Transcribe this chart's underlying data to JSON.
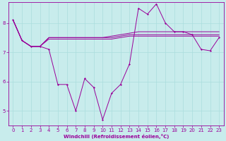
{
  "xlabel": "Windchill (Refroidissement éolien,°C)",
  "background_color": "#c8ecec",
  "grid_color": "#aadddd",
  "line_color": "#990099",
  "xlim": [
    -0.5,
    23.5
  ],
  "ylim": [
    4.5,
    8.7
  ],
  "xticks": [
    0,
    1,
    2,
    3,
    4,
    5,
    6,
    7,
    8,
    9,
    10,
    11,
    12,
    13,
    14,
    15,
    16,
    17,
    18,
    19,
    20,
    21,
    22,
    23
  ],
  "yticks": [
    5,
    6,
    7,
    8
  ],
  "series": [
    {
      "x": [
        0,
        1,
        2,
        3,
        4,
        5,
        6,
        7,
        8,
        9,
        10,
        11,
        12,
        13,
        14,
        15,
        16,
        17,
        18,
        19,
        20,
        21,
        22,
        23
      ],
      "y": [
        8.1,
        7.4,
        7.2,
        7.2,
        7.1,
        5.9,
        5.9,
        5.0,
        6.1,
        5.8,
        4.7,
        5.6,
        5.9,
        6.6,
        8.5,
        8.3,
        8.65,
        8.0,
        7.7,
        7.7,
        7.6,
        7.1,
        7.05,
        7.5
      ],
      "marker": true
    },
    {
      "x": [
        0,
        1,
        2,
        3,
        4,
        5,
        6,
        7,
        8,
        9,
        10,
        11,
        12,
        13,
        14,
        15,
        16,
        17,
        18,
        19,
        20,
        21,
        22,
        23
      ],
      "y": [
        8.1,
        7.4,
        7.2,
        7.2,
        7.5,
        7.5,
        7.5,
        7.5,
        7.5,
        7.5,
        7.5,
        7.55,
        7.6,
        7.65,
        7.7,
        7.7,
        7.7,
        7.7,
        7.7,
        7.7,
        7.7,
        7.7,
        7.7,
        7.7
      ],
      "marker": false
    },
    {
      "x": [
        0,
        1,
        2,
        3,
        4,
        5,
        6,
        7,
        8,
        9,
        10,
        11,
        12,
        13,
        14,
        15,
        16,
        17,
        18,
        19,
        20,
        21,
        22,
        23
      ],
      "y": [
        8.1,
        7.4,
        7.2,
        7.2,
        7.5,
        7.5,
        7.5,
        7.5,
        7.5,
        7.5,
        7.5,
        7.5,
        7.55,
        7.6,
        7.6,
        7.6,
        7.6,
        7.6,
        7.6,
        7.6,
        7.6,
        7.6,
        7.6,
        7.6
      ],
      "marker": false
    },
    {
      "x": [
        0,
        1,
        2,
        3,
        4,
        5,
        6,
        7,
        8,
        9,
        10,
        11,
        12,
        13,
        14,
        15,
        16,
        17,
        18,
        19,
        20,
        21,
        22,
        23
      ],
      "y": [
        8.1,
        7.4,
        7.2,
        7.2,
        7.45,
        7.45,
        7.45,
        7.45,
        7.45,
        7.45,
        7.45,
        7.45,
        7.5,
        7.55,
        7.55,
        7.55,
        7.55,
        7.55,
        7.55,
        7.55,
        7.55,
        7.55,
        7.55,
        7.55
      ],
      "marker": false
    }
  ]
}
